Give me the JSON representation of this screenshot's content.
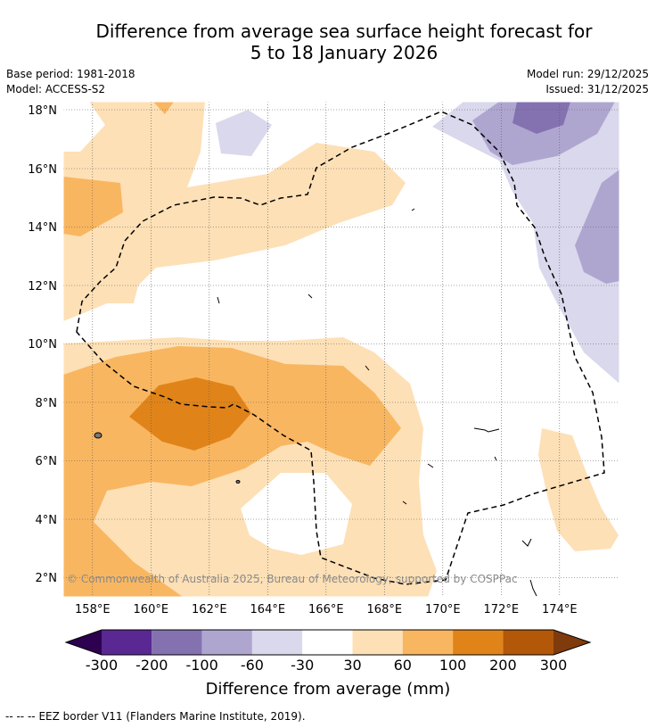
{
  "title": {
    "line1": "Difference from average sea surface height forecast for",
    "line2": "5 to 18 January 2026"
  },
  "info": {
    "base_period": "Base period: 1981-2018",
    "model": "Model: ACCESS-S2",
    "model_run": "Model run: 29/12/2025",
    "issued": "Issued: 31/12/2025"
  },
  "map": {
    "lat_labels": [
      "18°N",
      "16°N",
      "14°N",
      "12°N",
      "10°N",
      "8°N",
      "6°N",
      "4°N",
      "2°N"
    ],
    "lon_labels": [
      "158°E",
      "160°E",
      "162°E",
      "164°E",
      "166°E",
      "168°E",
      "170°E",
      "172°E",
      "174°E"
    ],
    "copyright": "© Commonwealth of Australia 2025, Bureau of Meteorology; supported by COSPPac"
  },
  "colorbar": {
    "ticks": [
      "-300",
      "-200",
      "-100",
      "-60",
      "-30",
      "30",
      "60",
      "100",
      "200",
      "300"
    ],
    "colors": [
      "#5a2892",
      "#8472b0",
      "#afa6d0",
      "#d9d8ec",
      "#ffffff",
      "#fde0b6",
      "#f9b660",
      "#e0841a",
      "#b35708"
    ],
    "under_color": "#2d0050",
    "over_color": "#7f3b0c",
    "label": "Difference from average (mm)"
  },
  "footer": {
    "legend_symbol": "-- -- --",
    "legend_text": "EEZ border V11 (Flanders Marine Institute, 2019)."
  }
}
